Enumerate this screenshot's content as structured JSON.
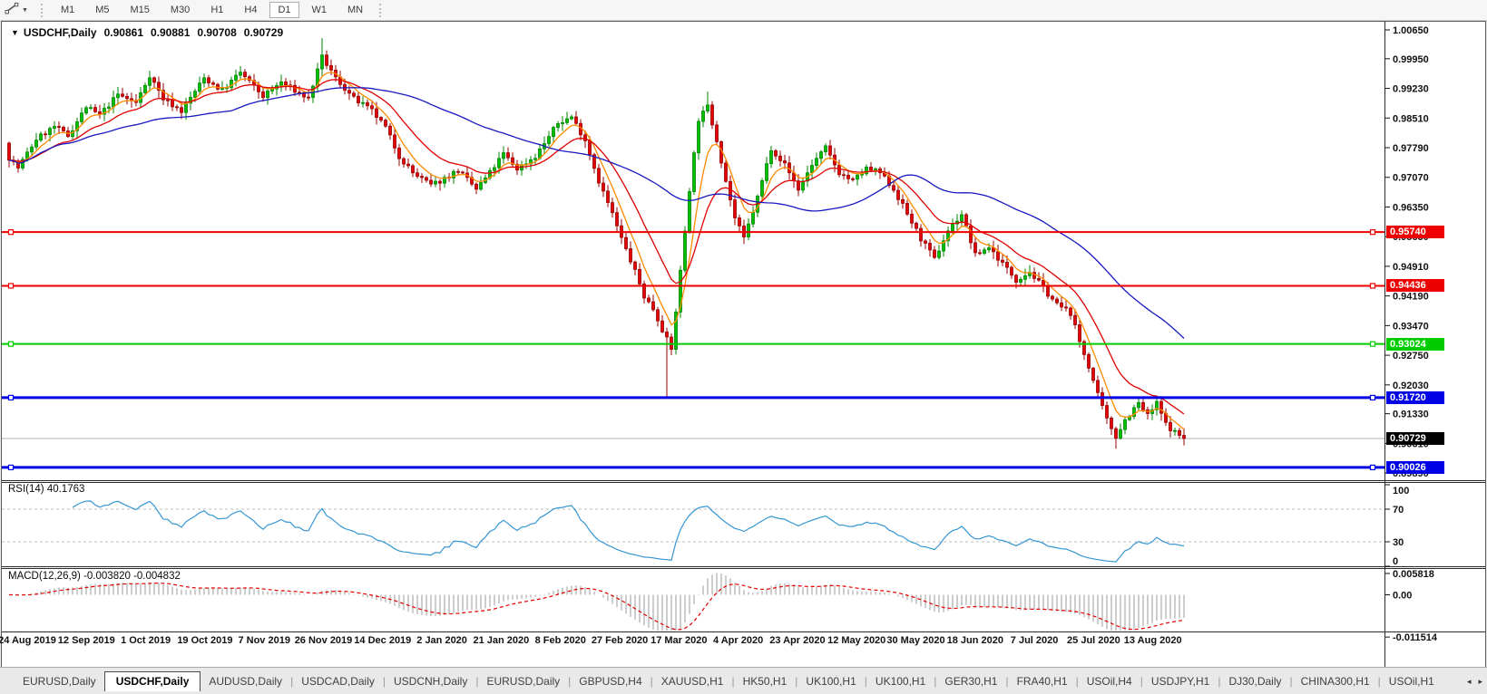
{
  "ui": {
    "collapse_icon": "▼",
    "tool_dropdown_icon": "▼",
    "scroll_left_icon": "◂",
    "scroll_right_icon": "▸"
  },
  "toolbar": {
    "timeframes": [
      "M1",
      "M5",
      "M15",
      "M30",
      "H1",
      "H4",
      "D1",
      "W1",
      "MN"
    ],
    "active": "D1"
  },
  "chart": {
    "symbol": "USDCHF,Daily",
    "open": "0.90861",
    "high": "0.90881",
    "low": "0.90708",
    "close": "0.90729"
  },
  "indicators": {
    "rsi": {
      "label": "RSI(14) 40.1763",
      "axis": [
        "100",
        "70",
        "30",
        "0"
      ],
      "levels": [
        70,
        30
      ],
      "line_color": "#3596d3"
    },
    "macd": {
      "label": "MACD(12,26,9) -0.003820 -0.004832",
      "axis": [
        "0.005818",
        "0.00",
        "-0.011514"
      ],
      "bar_color": "#c4c4c4",
      "signal_color": "#e00000"
    }
  },
  "price_axis": {
    "ticks": [
      "1.00650",
      "0.99950",
      "0.99230",
      "0.98510",
      "0.97790",
      "0.97070",
      "0.96350",
      "0.95630",
      "0.94910",
      "0.94190",
      "0.93470",
      "0.92750",
      "0.92030",
      "0.91330",
      "0.90610",
      "0.89890"
    ]
  },
  "lines": [
    {
      "price": 0.9574,
      "label": "0.95740",
      "color": "#ee0000",
      "width": 2
    },
    {
      "price": 0.94436,
      "label": "0.94436",
      "color": "#ee0000",
      "width": 2
    },
    {
      "price": 0.93024,
      "label": "0.93024",
      "color": "#00cc00",
      "width": 2
    },
    {
      "price": 0.9172,
      "label": "0.91720",
      "color": "#0000e6",
      "width": 3
    },
    {
      "price": 0.90026,
      "label": "0.90026",
      "color": "#0000e6",
      "width": 3
    }
  ],
  "current_price": {
    "label": "0.90729",
    "price": 0.90729,
    "line_color": "#b2b2b2",
    "box_color": "#000000"
  },
  "date_axis": {
    "labels": [
      "24 Aug 2019",
      "12 Sep 2019",
      "1 Oct 2019",
      "19 Oct 2019",
      "7 Nov 2019",
      "26 Nov 2019",
      "14 Dec 2019",
      "2 Jan 2020",
      "21 Jan 2020",
      "8 Feb 2020",
      "27 Feb 2020",
      "17 Mar 2020",
      "4 Apr 2020",
      "23 Apr 2020",
      "12 May 2020",
      "30 May 2020",
      "18 Jun 2020",
      "7 Jul 2020",
      "25 Jul 2020",
      "13 Aug 2020"
    ]
  },
  "tabs": {
    "items": [
      "EURUSD,Daily",
      "USDCHF,Daily",
      "AUDUSD,Daily",
      "USDCAD,Daily",
      "USDCNH,Daily",
      "EURUSD,Daily",
      "GBPUSD,H4",
      "XAUUSD,H1",
      "HK50,H1",
      "UK100,H1",
      "UK100,H1",
      "GER30,H1",
      "FRA40,H1",
      "USOil,H4",
      "USDJPY,H1",
      "DJ30,Daily",
      "CHINA300,H1",
      "USOil,H1"
    ],
    "active_index": 1
  },
  "chart_data": {
    "type": "candlestick",
    "symbol": "USDCHF",
    "timeframe": "Daily",
    "title": "USDCHF,Daily  0.90861 0.90881 0.90708 0.90729",
    "ohlc_current": {
      "open": 0.90861,
      "high": 0.90881,
      "low": 0.90708,
      "close": 0.90729
    },
    "ylim": [
      0.8989,
      1.0065
    ],
    "y_axis_ticks": [
      1.0065,
      0.9995,
      0.9923,
      0.9851,
      0.9779,
      0.9707,
      0.9635,
      0.9563,
      0.9491,
      0.9419,
      0.9347,
      0.9275,
      0.9203,
      0.9133,
      0.9061,
      0.8989
    ],
    "x_axis_labels": [
      "24 Aug 2019",
      "12 Sep 2019",
      "1 Oct 2019",
      "19 Oct 2019",
      "7 Nov 2019",
      "26 Nov 2019",
      "14 Dec 2019",
      "2 Jan 2020",
      "21 Jan 2020",
      "8 Feb 2020",
      "27 Feb 2020",
      "17 Mar 2020",
      "4 Apr 2020",
      "23 Apr 2020",
      "12 May 2020",
      "30 May 2020",
      "18 Jun 2020",
      "7 Jul 2020",
      "25 Jul 2020",
      "13 Aug 2020"
    ],
    "horizontal_levels": [
      0.9574,
      0.94436,
      0.93024,
      0.9172,
      0.90026
    ],
    "grid": false,
    "legend": false,
    "n_candles": 260,
    "seed": 7,
    "last_close": 0.90729,
    "colors": {
      "up_fill": "#00be00",
      "up_stroke": "#008500",
      "down_fill": "#e30505",
      "down_stroke": "#990000"
    },
    "moving_averages": [
      {
        "name": "fast",
        "type": "ema",
        "period": 6,
        "color": "#ff8a00"
      },
      {
        "name": "medium",
        "type": "ema",
        "period": 16,
        "color": "#e00000"
      },
      {
        "name": "slow",
        "type": "sma",
        "period": 50,
        "color": "#1818c0"
      }
    ],
    "rsi": {
      "period": 14,
      "current": 40.1763
    },
    "macd": {
      "fast": 12,
      "slow": 26,
      "signal_period": 9,
      "current_main": -0.00382,
      "current_signal": -0.004832,
      "axis_max": 0.005818,
      "axis_min": -0.011514
    },
    "waypoints": [
      [
        0,
        0.9755
      ],
      [
        2,
        0.973
      ],
      [
        6,
        0.98
      ],
      [
        10,
        0.983
      ],
      [
        13,
        0.9808
      ],
      [
        17,
        0.9878
      ],
      [
        20,
        0.9858
      ],
      [
        24,
        0.9908
      ],
      [
        28,
        0.9888
      ],
      [
        31,
        0.9955
      ],
      [
        34,
        0.9898
      ],
      [
        38,
        0.9868
      ],
      [
        43,
        0.9948
      ],
      [
        47,
        0.9918
      ],
      [
        51,
        0.9962
      ],
      [
        56,
        0.9904
      ],
      [
        60,
        0.9938
      ],
      [
        66,
        0.9898
      ],
      [
        69,
        0.9998
      ],
      [
        72,
        0.9948
      ],
      [
        76,
        0.9898
      ],
      [
        80,
        0.9868
      ],
      [
        83,
        0.9828
      ],
      [
        86,
        0.9758
      ],
      [
        89,
        0.9718
      ],
      [
        93,
        0.9688
      ],
      [
        95,
        0.9698
      ],
      [
        99,
        0.9724
      ],
      [
        103,
        0.9678
      ],
      [
        106,
        0.9718
      ],
      [
        109,
        0.9764
      ],
      [
        112,
        0.9728
      ],
      [
        116,
        0.9758
      ],
      [
        121,
        0.9838
      ],
      [
        124,
        0.9854
      ],
      [
        127,
        0.9798
      ],
      [
        130,
        0.9698
      ],
      [
        133,
        0.9618
      ],
      [
        135,
        0.9558
      ],
      [
        138,
        0.9478
      ],
      [
        140,
        0.9418
      ],
      [
        142,
        0.9388
      ],
      [
        144,
        0.9338
      ],
      [
        146,
        0.9288
      ],
      [
        148,
        0.9478
      ],
      [
        150,
        0.9678
      ],
      [
        152,
        0.9848
      ],
      [
        154,
        0.9878
      ],
      [
        156,
        0.9798
      ],
      [
        158,
        0.9698
      ],
      [
        160,
        0.9608
      ],
      [
        162,
        0.9558
      ],
      [
        165,
        0.9658
      ],
      [
        168,
        0.9778
      ],
      [
        171,
        0.9738
      ],
      [
        174,
        0.9678
      ],
      [
        177,
        0.9738
      ],
      [
        180,
        0.9778
      ],
      [
        183,
        0.9718
      ],
      [
        186,
        0.9698
      ],
      [
        189,
        0.9728
      ],
      [
        192,
        0.9718
      ],
      [
        195,
        0.9678
      ],
      [
        198,
        0.9618
      ],
      [
        201,
        0.9558
      ],
      [
        204,
        0.9508
      ],
      [
        207,
        0.9578
      ],
      [
        210,
        0.9618
      ],
      [
        213,
        0.9518
      ],
      [
        216,
        0.9538
      ],
      [
        219,
        0.9498
      ],
      [
        222,
        0.9458
      ],
      [
        225,
        0.9478
      ],
      [
        228,
        0.9438
      ],
      [
        231,
        0.9398
      ],
      [
        234,
        0.9378
      ],
      [
        236,
        0.9308
      ],
      [
        238,
        0.9248
      ],
      [
        240,
        0.9178
      ],
      [
        242,
        0.9118
      ],
      [
        244,
        0.9078
      ],
      [
        246,
        0.9118
      ],
      [
        249,
        0.9158
      ],
      [
        251,
        0.9128
      ],
      [
        253,
        0.9158
      ],
      [
        255,
        0.9108
      ],
      [
        257,
        0.9088
      ],
      [
        259,
        0.90729
      ]
    ],
    "wick_overrides": {
      "69": {
        "high": 1.0045
      },
      "145": {
        "low": 0.9175
      },
      "154": {
        "high": 0.9915
      },
      "244": {
        "low": 0.9048
      }
    }
  }
}
